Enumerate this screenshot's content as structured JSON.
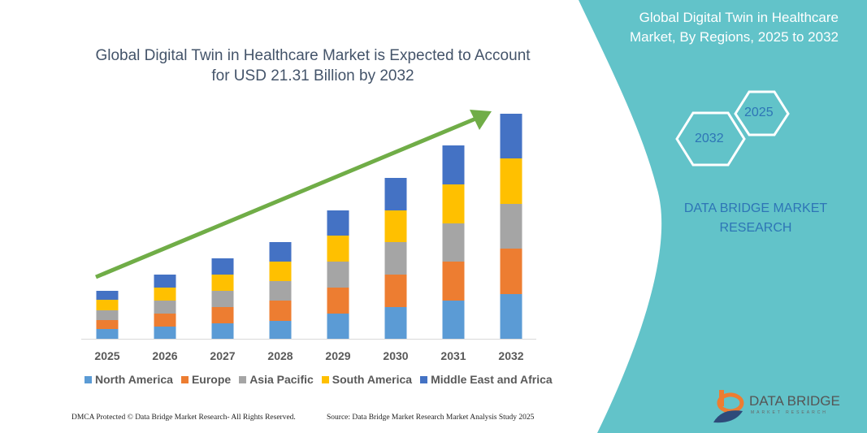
{
  "header": {
    "title_line1": "Global Digital Twin in Healthcare Market is Expected to Account",
    "title_line2": "for USD 21.31 Billion by 2032"
  },
  "side_panel": {
    "title_line1": "Global Digital Twin in Healthcare",
    "title_line2": "Market, By Regions, 2025 to 2032",
    "hex_back": "2025",
    "hex_front": "2032",
    "brand_line1": "DATA BRIDGE MARKET",
    "brand_line2": "RESEARCH",
    "logo_text": "DATA BRIDGE",
    "logo_sub": "MARKET RESEARCH",
    "color": "#62C3C9"
  },
  "footer": {
    "left": "DMCA Protected © Data Bridge Market Research-  All Rights Reserved.",
    "right": "Source: Data Bridge Market Research  Market Analysis Study 2025"
  },
  "chart_data": {
    "type": "bar",
    "stacked": true,
    "categories": [
      "2025",
      "2026",
      "2027",
      "2028",
      "2029",
      "2030",
      "2031",
      "2032"
    ],
    "series": [
      {
        "name": "North America",
        "color": "#5B9BD5",
        "values": [
          12,
          15,
          19,
          22,
          31,
          39,
          47,
          55
        ]
      },
      {
        "name": "Europe",
        "color": "#ED7D31",
        "values": [
          11,
          16,
          20,
          25,
          32,
          40,
          48,
          56
        ]
      },
      {
        "name": "Asia Pacific",
        "color": "#A5A5A5",
        "values": [
          12,
          16,
          20,
          24,
          32,
          40,
          47,
          55
        ]
      },
      {
        "name": "South America",
        "color": "#FFC000",
        "values": [
          13,
          16,
          20,
          24,
          32,
          39,
          48,
          56
        ]
      },
      {
        "name": "Middle East and Africa",
        "color": "#4472C4",
        "values": [
          11,
          16,
          20,
          24,
          31,
          40,
          48,
          55
        ]
      }
    ],
    "ylim": [
      0,
      280
    ],
    "y_axis_shown": false,
    "grid": false,
    "legend": "bottom",
    "trend_arrow_color": "#70AD47"
  }
}
